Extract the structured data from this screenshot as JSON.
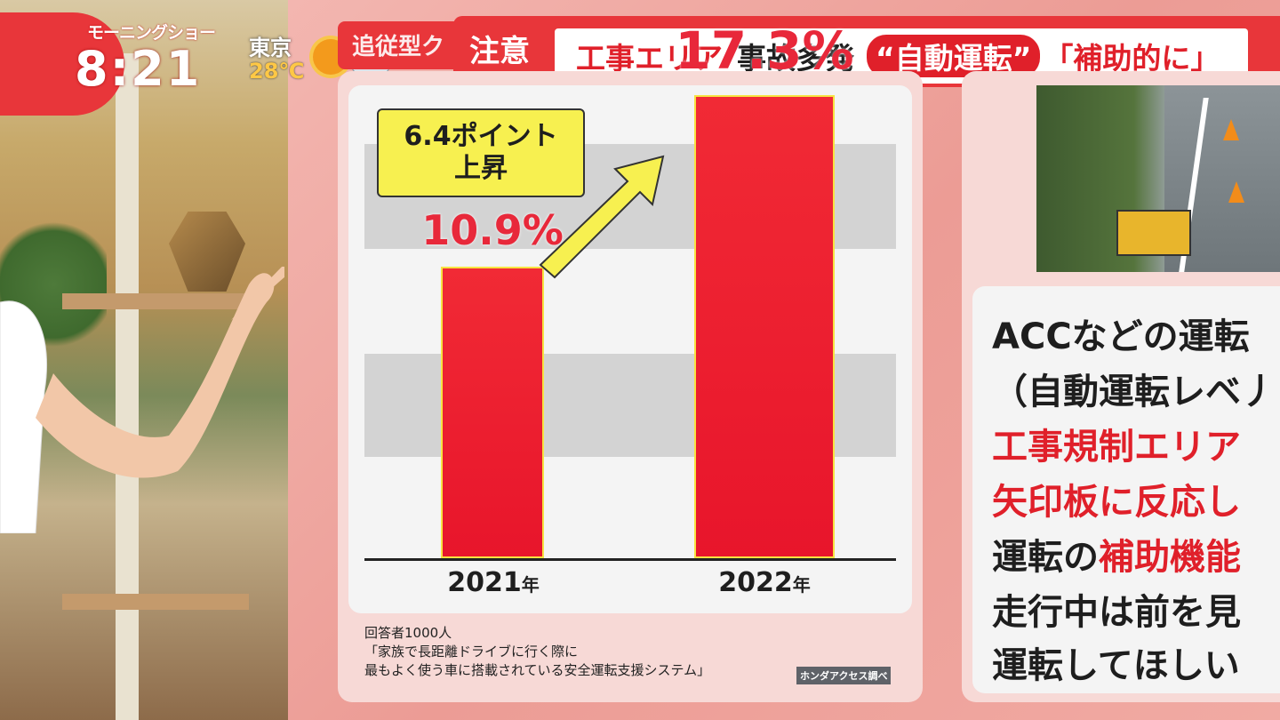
{
  "broadcast": {
    "program_logo": "モーニングショー",
    "clock": "8:21",
    "city": "東京",
    "temperature": "28℃",
    "weather_icon": "sun-cloud-icon",
    "back_label": "追従型ク"
  },
  "headline": {
    "badge": "注意",
    "part1": "工事エリア",
    "part2": "事故多発",
    "part3": "“自動運転”",
    "part4": "「補助的に」"
  },
  "chart_data": {
    "type": "bar",
    "categories": [
      "2021年",
      "2022年"
    ],
    "values": [
      10.9,
      17.3
    ],
    "value_labels": [
      "10.9%",
      "17.3%"
    ],
    "unit": "%",
    "ylim": [
      0,
      20
    ],
    "annotation": "6.4ポイント上昇",
    "colors": {
      "bar": "#e8152b",
      "bar_border": "#f7e341",
      "label": "#e8283a"
    }
  },
  "chart_text": {
    "callout_line1": "6.4ポイント",
    "callout_line2": "上昇",
    "tick1_year": "2021",
    "tick1_unit": "年",
    "tick2_year": "2022",
    "tick2_unit": "年",
    "note1": "回答者1000人",
    "note2": "「家族で長距離ドライブに行く際に",
    "note3": "最もよく使う車に搭載されている安全運転支援システム」",
    "source": "ホンダアクセス調べ"
  },
  "side_text": {
    "line1": "ACCなどの運転",
    "line2": "（自動運転レベ丿",
    "line3": "工事規制エリア",
    "line4": "矢印板に反応し",
    "line5a": "運転の",
    "line5b": "補助機能",
    "line6": "走行中は前を見",
    "line7": "運転してほしい"
  }
}
